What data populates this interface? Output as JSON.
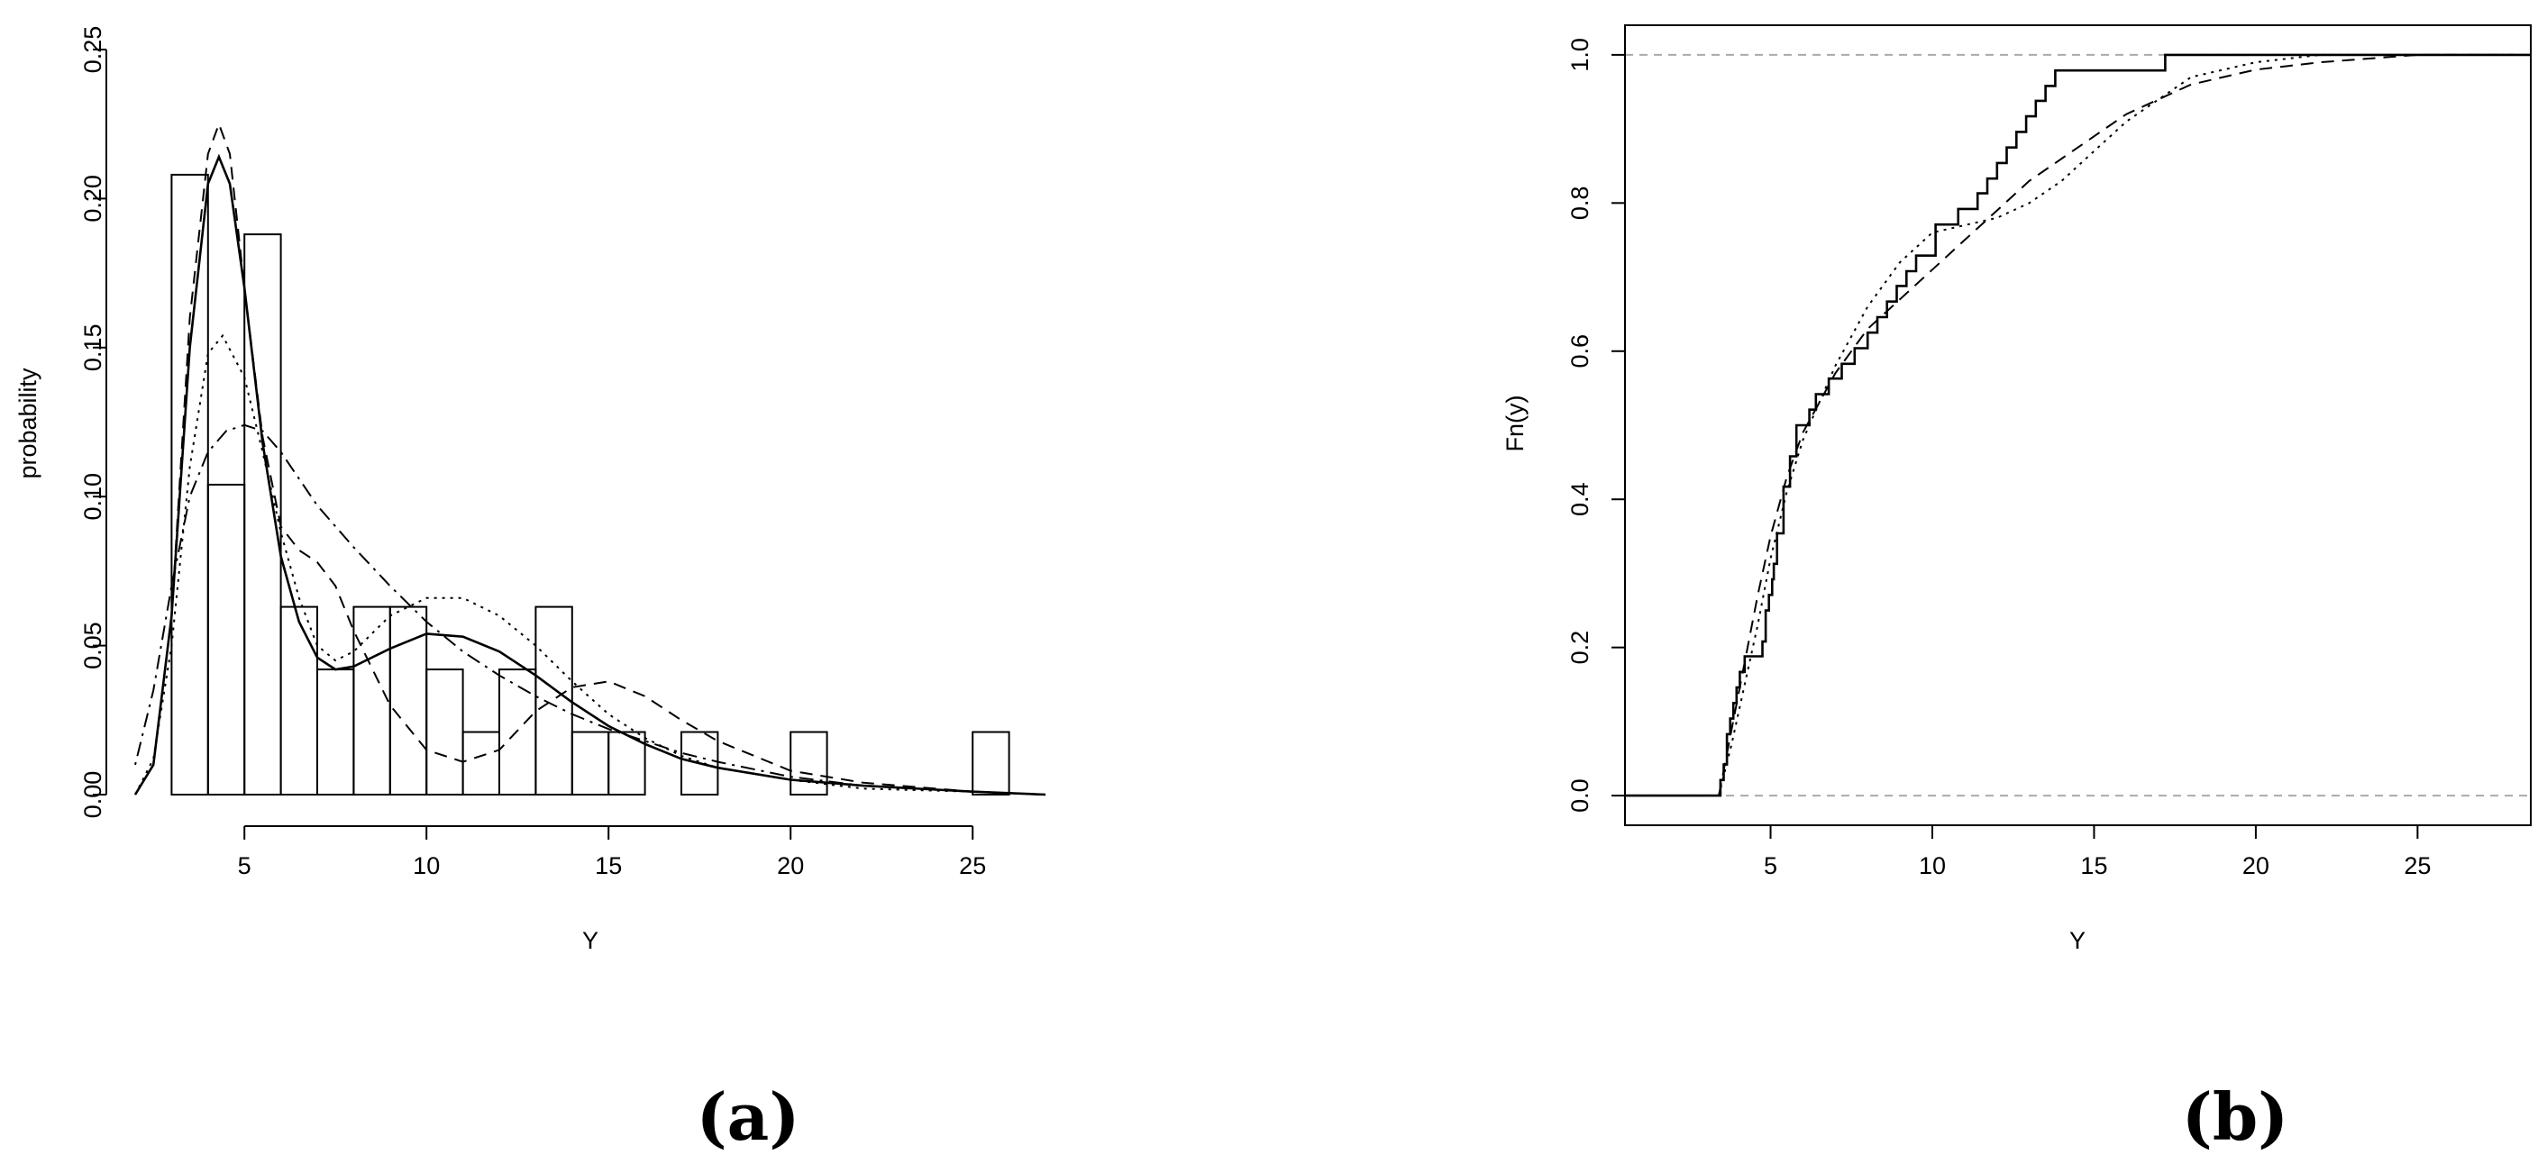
{
  "panel_labels": {
    "a": "(a)",
    "b": "(b)"
  },
  "chart_data": [
    {
      "type": "bar",
      "panel": "(a)",
      "xlabel": "Y",
      "ylabel": "probability",
      "xlim": [
        2,
        27
      ],
      "ylim": [
        0,
        0.25
      ],
      "xticks": [
        5,
        10,
        15,
        20,
        25
      ],
      "yticks": [
        0.0,
        0.05,
        0.1,
        0.15,
        0.2,
        0.25
      ],
      "ytick_labels": [
        "0.00",
        "0.05",
        "0.10",
        "0.15",
        "0.20",
        "0.25"
      ],
      "bins": [
        {
          "x0": 3.0,
          "x1": 4.0,
          "height": 0.208
        },
        {
          "x0": 4.0,
          "x1": 5.0,
          "height": 0.104
        },
        {
          "x0": 5.0,
          "x1": 6.0,
          "height": 0.188
        },
        {
          "x0": 6.0,
          "x1": 7.0,
          "height": 0.063
        },
        {
          "x0": 7.0,
          "x1": 8.0,
          "height": 0.042
        },
        {
          "x0": 8.0,
          "x1": 9.0,
          "height": 0.063
        },
        {
          "x0": 9.0,
          "x1": 10.0,
          "height": 0.063
        },
        {
          "x0": 10.0,
          "x1": 11.0,
          "height": 0.042
        },
        {
          "x0": 11.0,
          "x1": 12.0,
          "height": 0.021
        },
        {
          "x0": 12.0,
          "x1": 13.0,
          "height": 0.042
        },
        {
          "x0": 13.0,
          "x1": 14.0,
          "height": 0.063
        },
        {
          "x0": 14.0,
          "x1": 15.0,
          "height": 0.021
        },
        {
          "x0": 15.0,
          "x1": 16.0,
          "height": 0.021
        },
        {
          "x0": 16.0,
          "x1": 17.0,
          "height": 0.0
        },
        {
          "x0": 17.0,
          "x1": 18.0,
          "height": 0.021
        },
        {
          "x0": 18.0,
          "x1": 19.0,
          "height": 0.0
        },
        {
          "x0": 19.0,
          "x1": 20.0,
          "height": 0.0
        },
        {
          "x0": 20.0,
          "x1": 21.0,
          "height": 0.021
        },
        {
          "x0": 21.0,
          "x1": 22.0,
          "height": 0.0
        },
        {
          "x0": 22.0,
          "x1": 23.0,
          "height": 0.0
        },
        {
          "x0": 23.0,
          "x1": 24.0,
          "height": 0.0
        },
        {
          "x0": 24.0,
          "x1": 25.0,
          "height": 0.0
        },
        {
          "x0": 25.0,
          "x1": 26.0,
          "height": 0.021
        }
      ],
      "series": [
        {
          "style": "solid",
          "x": [
            2,
            2.5,
            3,
            3.5,
            4,
            4.3,
            4.6,
            5,
            5.5,
            6,
            6.5,
            7,
            7.5,
            8,
            9,
            10,
            11,
            12,
            13,
            14,
            15,
            16,
            17,
            18,
            20,
            22,
            25,
            27
          ],
          "y": [
            0.0,
            0.01,
            0.06,
            0.15,
            0.205,
            0.214,
            0.205,
            0.17,
            0.118,
            0.08,
            0.058,
            0.046,
            0.042,
            0.043,
            0.049,
            0.054,
            0.053,
            0.048,
            0.04,
            0.031,
            0.023,
            0.017,
            0.012,
            0.009,
            0.005,
            0.003,
            0.001,
            0.0
          ]
        },
        {
          "style": "dashed",
          "x": [
            2,
            2.5,
            3,
            3.5,
            4,
            4.3,
            4.6,
            5,
            5.5,
            6,
            6.5,
            7,
            7.5,
            8,
            9,
            10,
            11,
            12,
            13,
            14,
            15,
            16,
            17,
            18,
            20,
            22,
            25,
            27
          ],
          "y": [
            0.0,
            0.01,
            0.06,
            0.16,
            0.215,
            0.225,
            0.215,
            0.17,
            0.12,
            0.09,
            0.082,
            0.078,
            0.07,
            0.055,
            0.03,
            0.015,
            0.011,
            0.015,
            0.028,
            0.036,
            0.038,
            0.033,
            0.025,
            0.018,
            0.008,
            0.004,
            0.001,
            0.0
          ]
        },
        {
          "style": "dotted",
          "x": [
            2,
            2.5,
            3,
            3.5,
            4,
            4.4,
            5,
            5.5,
            6,
            6.5,
            7,
            7.5,
            8,
            9,
            10,
            11,
            12,
            13,
            14,
            15,
            16,
            17,
            18,
            20,
            22,
            25,
            27
          ],
          "y": [
            0.0,
            0.012,
            0.05,
            0.11,
            0.148,
            0.154,
            0.14,
            0.115,
            0.088,
            0.066,
            0.05,
            0.045,
            0.048,
            0.06,
            0.066,
            0.066,
            0.06,
            0.05,
            0.038,
            0.027,
            0.019,
            0.013,
            0.009,
            0.005,
            0.002,
            0.001,
            0.0
          ]
        },
        {
          "style": "dotdash",
          "x": [
            2,
            2.5,
            3,
            3.5,
            4,
            4.5,
            5,
            5.5,
            6,
            6.5,
            7,
            7.5,
            8,
            9,
            10,
            11,
            12,
            13,
            14,
            15,
            16,
            17,
            18,
            20,
            22,
            25,
            27
          ],
          "y": [
            0.01,
            0.035,
            0.07,
            0.1,
            0.115,
            0.122,
            0.124,
            0.122,
            0.115,
            0.106,
            0.097,
            0.09,
            0.083,
            0.07,
            0.058,
            0.048,
            0.04,
            0.033,
            0.027,
            0.022,
            0.018,
            0.014,
            0.011,
            0.006,
            0.003,
            0.001,
            0.0
          ]
        }
      ]
    },
    {
      "type": "line",
      "panel": "(b)",
      "xlabel": "Y",
      "ylabel": "Fn(y)",
      "xlim": [
        0.5,
        28.5
      ],
      "ylim": [
        -0.04,
        1.04
      ],
      "xticks": [
        5,
        10,
        15,
        20,
        25
      ],
      "yticks": [
        0.0,
        0.2,
        0.4,
        0.6,
        0.8,
        1.0
      ],
      "ytick_labels": [
        "0.0",
        "0.2",
        "0.4",
        "0.6",
        "0.8",
        "1.0"
      ],
      "reference_lines": [
        0.0,
        1.0
      ],
      "ecdf": {
        "jumps": [
          3.45,
          3.55,
          3.65,
          3.75,
          3.85,
          3.95,
          4.05,
          4.2,
          4.75,
          4.85,
          4.95,
          5.05,
          5.1,
          5.2,
          5.4,
          5.6,
          5.8,
          6.2,
          6.4,
          6.8,
          7.2,
          7.6,
          8.0,
          8.3,
          8.6,
          8.9,
          9.2,
          9.5,
          10.1,
          10.8,
          11.4,
          11.7,
          12.0,
          12.3,
          12.6,
          12.9,
          13.2,
          13.5,
          13.8,
          14.2,
          15.2,
          17.2,
          20.6,
          25.5
        ],
        "levels": [
          0.021,
          0.042,
          0.083,
          0.104,
          0.125,
          0.146,
          0.167,
          0.188,
          0.208,
          0.25,
          0.271,
          0.292,
          0.313,
          0.354,
          0.417,
          0.458,
          0.5,
          0.521,
          0.542,
          0.563,
          0.583,
          0.604,
          0.625,
          0.646,
          0.667,
          0.688,
          0.708,
          0.729,
          0.771,
          0.792,
          0.813,
          0.833,
          0.854,
          0.875,
          0.896,
          0.917,
          0.938,
          0.958,
          0.979,
          0.979,
          0.979,
          1.0,
          1.0,
          1.0
        ],
        "xmin": 0.5,
        "xmax": 28.5
      },
      "series": [
        {
          "style": "dashed",
          "x": [
            3.4,
            3.8,
            4.2,
            4.6,
            5,
            5.5,
            6,
            7,
            8,
            9,
            10,
            11,
            12,
            13,
            14,
            15,
            16,
            17,
            18,
            20,
            22,
            25,
            28
          ],
          "y": [
            0.0,
            0.09,
            0.18,
            0.27,
            0.35,
            0.43,
            0.49,
            0.57,
            0.63,
            0.67,
            0.71,
            0.75,
            0.79,
            0.83,
            0.86,
            0.89,
            0.92,
            0.94,
            0.96,
            0.98,
            0.99,
            1.0,
            1.0
          ]
        },
        {
          "style": "dotted",
          "x": [
            3.4,
            3.8,
            4.2,
            4.6,
            5,
            5.5,
            6,
            7,
            8,
            9,
            10,
            11,
            12,
            13,
            14,
            15,
            16,
            17,
            18,
            20,
            22,
            25,
            28
          ],
          "y": [
            0.0,
            0.07,
            0.15,
            0.23,
            0.32,
            0.41,
            0.48,
            0.58,
            0.66,
            0.72,
            0.76,
            0.77,
            0.78,
            0.8,
            0.83,
            0.87,
            0.91,
            0.94,
            0.97,
            0.99,
            1.0,
            1.0,
            1.0
          ]
        }
      ]
    }
  ]
}
